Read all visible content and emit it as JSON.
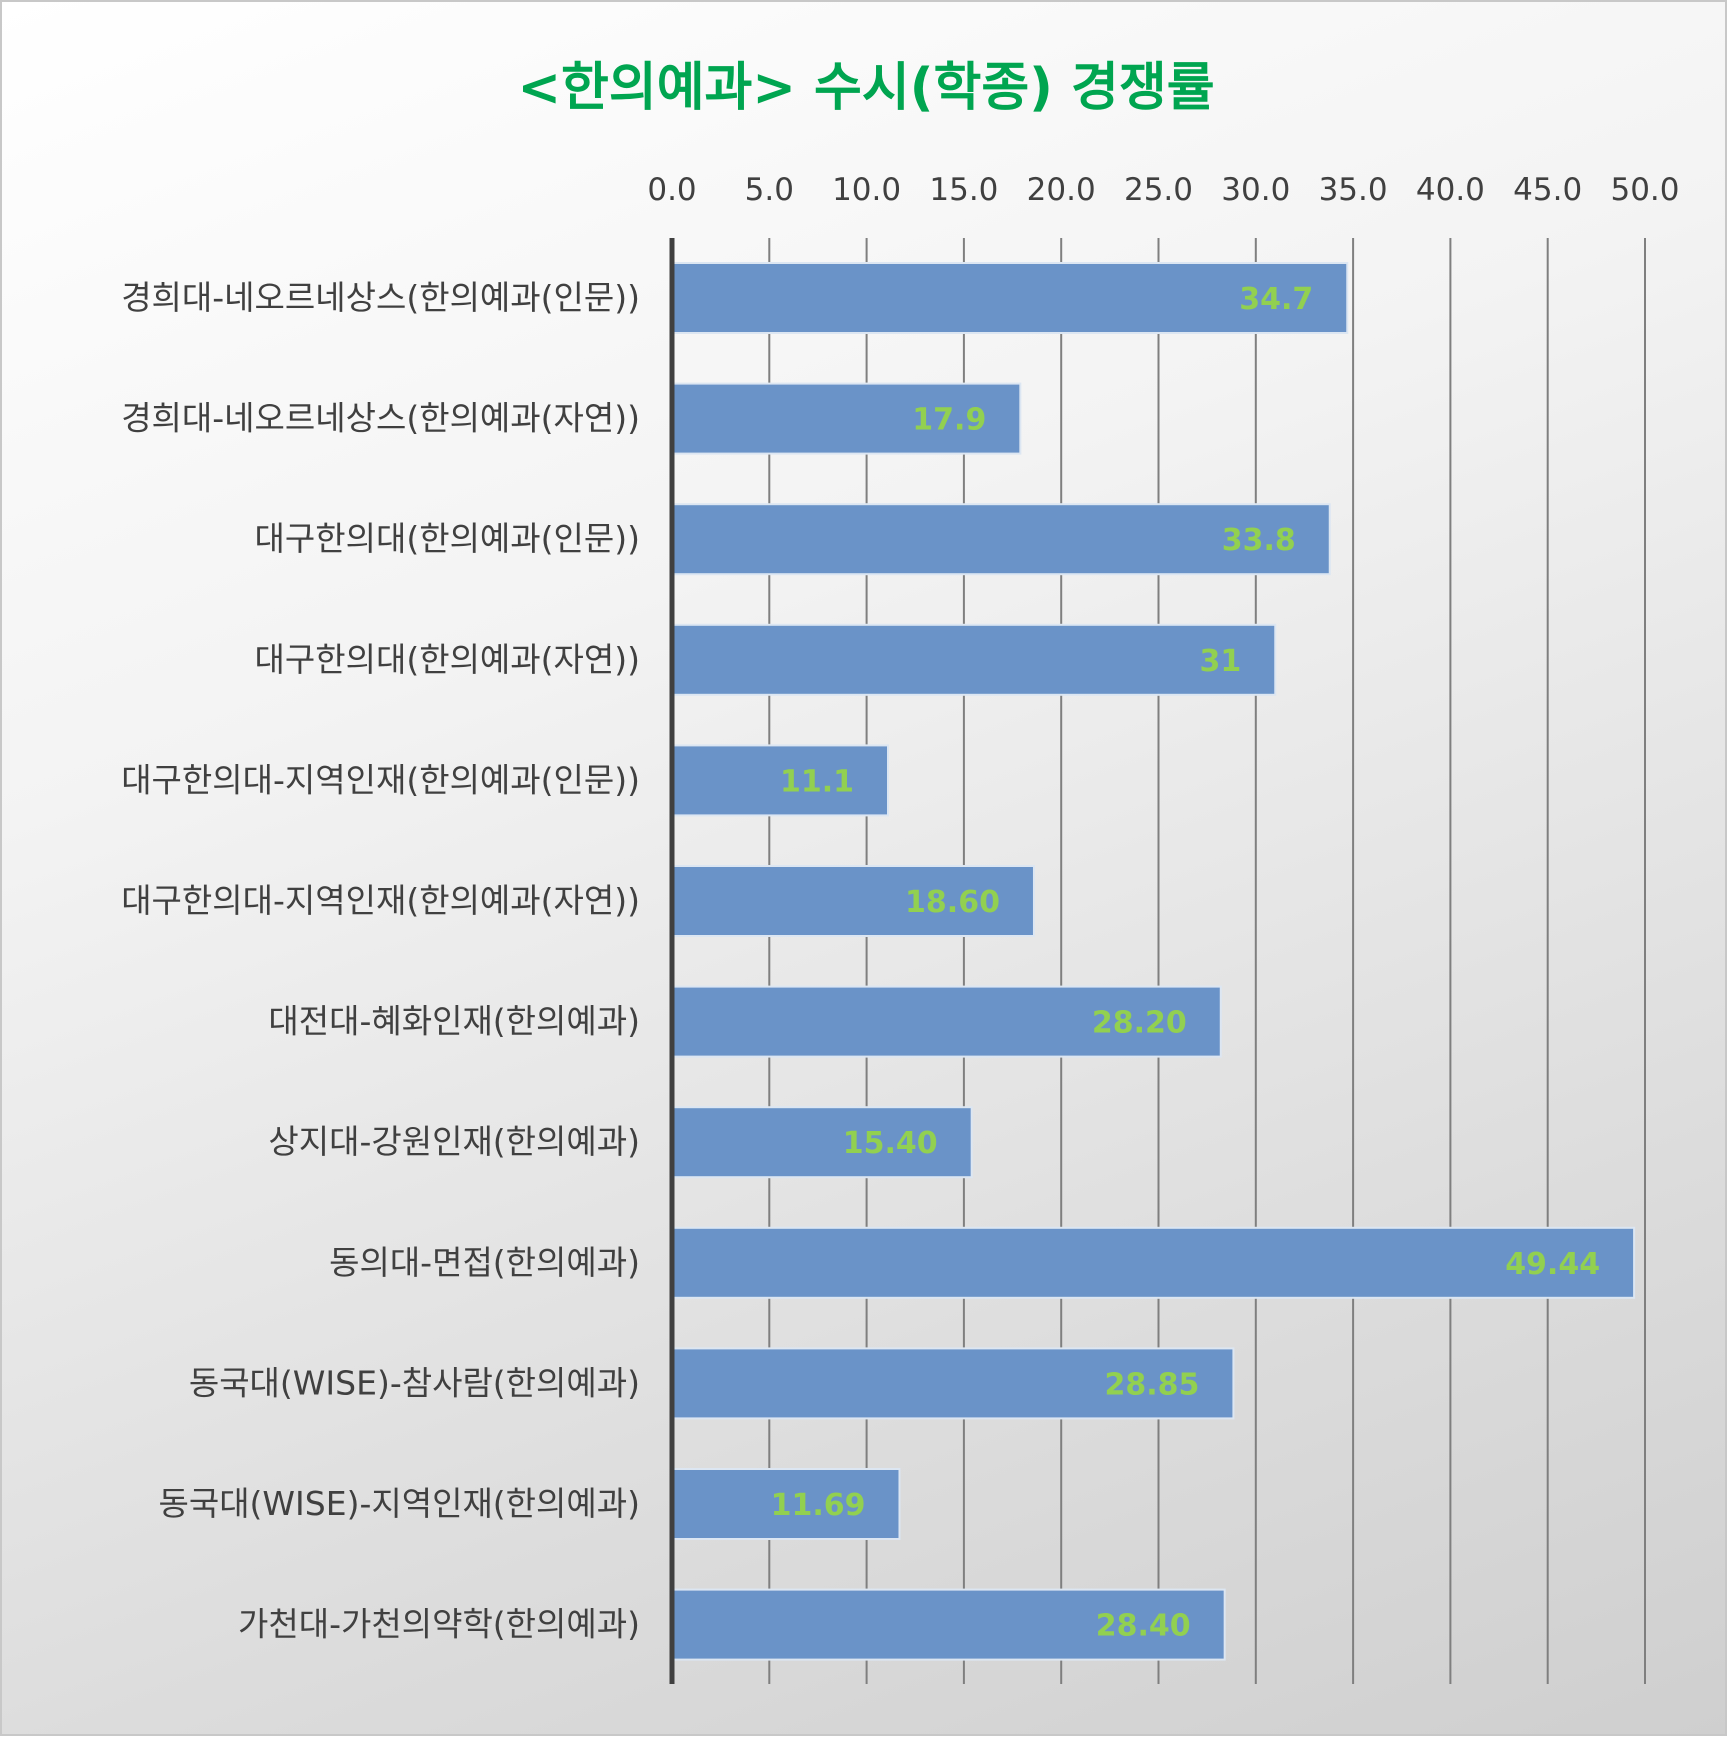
{
  "chart_data": {
    "type": "bar",
    "orientation": "horizontal",
    "title": "<한의예과> 수시(학종) 경쟁률",
    "xlim": [
      0,
      50
    ],
    "ticks": [
      "0.0",
      "5.0",
      "10.0",
      "15.0",
      "20.0",
      "25.0",
      "30.0",
      "35.0",
      "40.0",
      "45.0",
      "50.0"
    ],
    "x_axis_position": "top",
    "grid": true,
    "categories": [
      "경희대-네오르네상스(한의예과(인문))",
      "경희대-네오르네상스(한의예과(자연))",
      "대구한의대(한의예과(인문))",
      "대구한의대(한의예과(자연))",
      "대구한의대-지역인재(한의예과(인문))",
      "대구한의대-지역인재(한의예과(자연))",
      "대전대-혜화인재(한의예과)",
      "상지대-강원인재(한의예과)",
      "동의대-면접(한의예과)",
      "동국대(WISE)-참사람(한의예과)",
      "동국대(WISE)-지역인재(한의예과)",
      "가천대-가천의약학(한의예과)"
    ],
    "values": [
      34.7,
      17.9,
      33.8,
      31,
      11.1,
      18.6,
      28.2,
      15.4,
      49.44,
      28.85,
      11.69,
      28.4
    ],
    "value_labels": [
      "34.7",
      "17.9",
      "33.8",
      "31",
      "11.1",
      "18.60",
      "28.20",
      "15.40",
      "49.44",
      "28.85",
      "11.69",
      "28.40"
    ],
    "colors": {
      "bar": "#6a93c8",
      "bar_border": "#dce6f2",
      "value_label": "#92d050",
      "title": "#00a550",
      "text": "#404040",
      "gridline": "#7f7f7f",
      "axis": "#404040"
    }
  }
}
